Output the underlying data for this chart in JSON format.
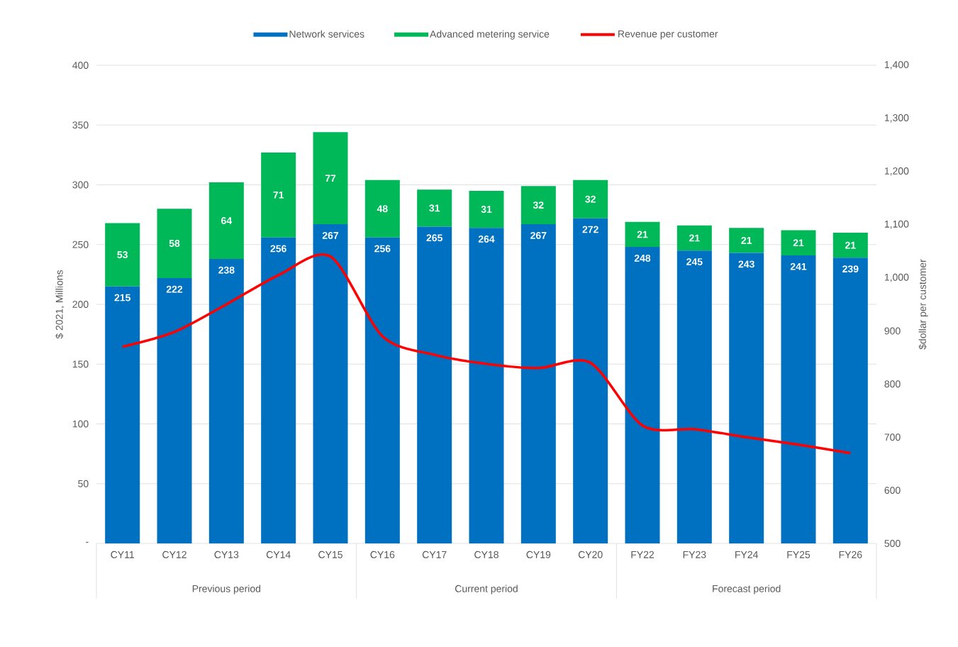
{
  "chart_data": {
    "type": "bar",
    "stacked": true,
    "legend": "top",
    "grid": "y",
    "marker": "none",
    "ylabel": "$ 2021, Millions",
    "y2label": "$dollar per customer",
    "categories": [
      "CY11",
      "CY12",
      "CY13",
      "CY14",
      "CY15",
      "CY16",
      "CY17",
      "CY18",
      "CY19",
      "CY20",
      "FY22",
      "FY23",
      "FY24",
      "FY25",
      "FY26"
    ],
    "series": [
      {
        "name": "Network services",
        "color": "#0070c0",
        "values": [
          215,
          222,
          238,
          256,
          267,
          256,
          265,
          264,
          267,
          272,
          248,
          245,
          243,
          241,
          239
        ],
        "value_labels": [
          "215",
          "222",
          "238",
          "256",
          "267",
          "256",
          "265",
          "264",
          "267",
          "272",
          "248",
          "245",
          "243",
          "241",
          "239"
        ]
      },
      {
        "name": "Advanced metering service",
        "color": "#00b858",
        "values": [
          53,
          58,
          64,
          71,
          77,
          48,
          31,
          31,
          32,
          32,
          21,
          21,
          21,
          21,
          21
        ],
        "value_labels": [
          "53",
          "58",
          "64",
          "71",
          "77",
          "48",
          "31",
          "31",
          "32",
          "32",
          "21",
          "21",
          "21",
          "21",
          "21"
        ]
      },
      {
        "name": "Revenue per customer",
        "type": "line",
        "axis": "y2",
        "color": "#ff0000",
        "line_style": "solid",
        "values": [
          870,
          898,
          950,
          1005,
          1040,
          890,
          855,
          838,
          830,
          840,
          722,
          715,
          700,
          686,
          670
        ]
      }
    ],
    "ylim": [
      0,
      400
    ],
    "yticks": [
      {
        "value": 0,
        "label": "-"
      },
      50,
      100,
      150,
      200,
      250,
      300,
      350,
      400
    ],
    "y2lim": [
      500,
      1400
    ],
    "y2ticks": [
      500,
      600,
      700,
      800,
      900,
      {
        "value": 1000,
        "label": "1,000"
      },
      {
        "value": 1100,
        "label": "1,100"
      },
      {
        "value": 1200,
        "label": "1,200"
      },
      {
        "value": 1300,
        "label": "1,300"
      },
      {
        "value": 1400,
        "label": "1,400"
      }
    ],
    "annotations": [
      "Previous period",
      "Current period",
      "Forecast period"
    ]
  }
}
